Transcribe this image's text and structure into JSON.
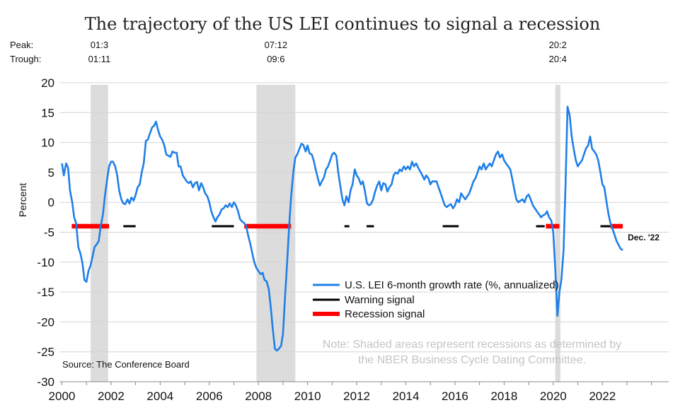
{
  "chart_data": {
    "type": "line",
    "title": "The trajectory of the US LEI continues to signal a recession",
    "ylabel": "Percent",
    "xlabel": "",
    "ylim": [
      -30,
      20
    ],
    "xlim": [
      1999.9,
      2024.7
    ],
    "y_ticks": [
      20,
      15,
      10,
      5,
      0,
      -5,
      -10,
      -15,
      -20,
      -25,
      -30
    ],
    "x_ticks": [
      2000,
      2002,
      2004,
      2006,
      2008,
      2010,
      2012,
      2014,
      2016,
      2018,
      2020,
      2022
    ],
    "grid": "horizontal",
    "peak_label": "Peak:",
    "trough_label": "Trough:",
    "recessions": [
      {
        "start": 2001.17,
        "end": 2001.88,
        "peak": "01:3",
        "trough": "01:11"
      },
      {
        "start": 2007.92,
        "end": 2009.5,
        "peak": "07:12",
        "trough": "09:6"
      },
      {
        "start": 2020.08,
        "end": 2020.29,
        "peak": "20:2",
        "trough": "20:4"
      }
    ],
    "series": [
      {
        "name": "U.S. LEI 6-month growth rate (%, annualized)",
        "color": "#1f7fe8",
        "points": [
          [
            2000.0,
            6.5
          ],
          [
            2000.08,
            4.5
          ],
          [
            2000.17,
            6.5
          ],
          [
            2000.25,
            5.8
          ],
          [
            2000.33,
            2.0
          ],
          [
            2000.42,
            0.0
          ],
          [
            2000.5,
            -2.5
          ],
          [
            2000.58,
            -3.5
          ],
          [
            2000.67,
            -7.5
          ],
          [
            2000.75,
            -8.5
          ],
          [
            2000.83,
            -10.0
          ],
          [
            2000.92,
            -13.0
          ],
          [
            2001.0,
            -13.3
          ],
          [
            2001.08,
            -11.5
          ],
          [
            2001.17,
            -10.5
          ],
          [
            2001.25,
            -9.0
          ],
          [
            2001.33,
            -7.5
          ],
          [
            2001.42,
            -7.0
          ],
          [
            2001.5,
            -6.5
          ],
          [
            2001.58,
            -4.0
          ],
          [
            2001.67,
            -2.0
          ],
          [
            2001.75,
            1.0
          ],
          [
            2001.83,
            3.5
          ],
          [
            2001.92,
            6.0
          ],
          [
            2002.0,
            6.8
          ],
          [
            2002.08,
            6.8
          ],
          [
            2002.17,
            6.0
          ],
          [
            2002.25,
            4.5
          ],
          [
            2002.33,
            2.0
          ],
          [
            2002.42,
            0.5
          ],
          [
            2002.5,
            -0.2
          ],
          [
            2002.58,
            -0.3
          ],
          [
            2002.67,
            0.5
          ],
          [
            2002.75,
            -0.2
          ],
          [
            2002.83,
            0.8
          ],
          [
            2002.92,
            0.3
          ],
          [
            2003.0,
            1.2
          ],
          [
            2003.08,
            2.5
          ],
          [
            2003.17,
            3.0
          ],
          [
            2003.25,
            5.0
          ],
          [
            2003.33,
            6.5
          ],
          [
            2003.42,
            10.3
          ],
          [
            2003.5,
            10.5
          ],
          [
            2003.58,
            11.5
          ],
          [
            2003.67,
            12.5
          ],
          [
            2003.75,
            12.8
          ],
          [
            2003.83,
            13.5
          ],
          [
            2003.92,
            12.0
          ],
          [
            2004.0,
            11.0
          ],
          [
            2004.08,
            10.5
          ],
          [
            2004.17,
            9.5
          ],
          [
            2004.25,
            8.0
          ],
          [
            2004.33,
            7.8
          ],
          [
            2004.42,
            7.6
          ],
          [
            2004.5,
            8.5
          ],
          [
            2004.58,
            8.3
          ],
          [
            2004.67,
            8.3
          ],
          [
            2004.75,
            6.0
          ],
          [
            2004.83,
            6.0
          ],
          [
            2004.92,
            4.5
          ],
          [
            2005.0,
            4.0
          ],
          [
            2005.08,
            3.5
          ],
          [
            2005.17,
            3.2
          ],
          [
            2005.25,
            3.5
          ],
          [
            2005.33,
            2.5
          ],
          [
            2005.42,
            3.2
          ],
          [
            2005.5,
            3.4
          ],
          [
            2005.58,
            2.0
          ],
          [
            2005.67,
            3.2
          ],
          [
            2005.75,
            2.5
          ],
          [
            2005.83,
            1.5
          ],
          [
            2005.92,
            1.0
          ],
          [
            2006.0,
            0.0
          ],
          [
            2006.08,
            -1.5
          ],
          [
            2006.17,
            -2.5
          ],
          [
            2006.25,
            -3.2
          ],
          [
            2006.33,
            -2.5
          ],
          [
            2006.42,
            -2.0
          ],
          [
            2006.5,
            -1.2
          ],
          [
            2006.58,
            -1.0
          ],
          [
            2006.67,
            -0.5
          ],
          [
            2006.75,
            -0.8
          ],
          [
            2006.83,
            -0.2
          ],
          [
            2006.92,
            -0.8
          ],
          [
            2007.0,
            0.0
          ],
          [
            2007.08,
            -0.5
          ],
          [
            2007.17,
            -1.5
          ],
          [
            2007.25,
            -2.8
          ],
          [
            2007.33,
            -3.2
          ],
          [
            2007.42,
            -3.5
          ],
          [
            2007.5,
            -4.0
          ],
          [
            2007.58,
            -5.5
          ],
          [
            2007.67,
            -7.0
          ],
          [
            2007.75,
            -8.5
          ],
          [
            2007.83,
            -10.0
          ],
          [
            2007.92,
            -11.0
          ],
          [
            2008.0,
            -11.5
          ],
          [
            2008.08,
            -12.0
          ],
          [
            2008.17,
            -11.8
          ],
          [
            2008.25,
            -13.0
          ],
          [
            2008.33,
            -13.2
          ],
          [
            2008.42,
            -14.5
          ],
          [
            2008.5,
            -17.5
          ],
          [
            2008.58,
            -21.0
          ],
          [
            2008.67,
            -24.5
          ],
          [
            2008.75,
            -24.8
          ],
          [
            2008.83,
            -24.5
          ],
          [
            2008.92,
            -24.0
          ],
          [
            2009.0,
            -22.0
          ],
          [
            2009.08,
            -16.0
          ],
          [
            2009.17,
            -10.0
          ],
          [
            2009.25,
            -4.0
          ],
          [
            2009.33,
            1.0
          ],
          [
            2009.42,
            5.0
          ],
          [
            2009.5,
            7.5
          ],
          [
            2009.58,
            8.0
          ],
          [
            2009.67,
            9.0
          ],
          [
            2009.75,
            9.8
          ],
          [
            2009.83,
            9.6
          ],
          [
            2009.92,
            8.5
          ],
          [
            2010.0,
            9.5
          ],
          [
            2010.08,
            8.2
          ],
          [
            2010.17,
            8.0
          ],
          [
            2010.25,
            7.0
          ],
          [
            2010.33,
            5.5
          ],
          [
            2010.42,
            4.0
          ],
          [
            2010.5,
            2.8
          ],
          [
            2010.58,
            3.5
          ],
          [
            2010.67,
            4.2
          ],
          [
            2010.75,
            5.5
          ],
          [
            2010.83,
            6.0
          ],
          [
            2010.92,
            7.0
          ],
          [
            2011.0,
            8.0
          ],
          [
            2011.08,
            8.3
          ],
          [
            2011.17,
            7.8
          ],
          [
            2011.25,
            5.0
          ],
          [
            2011.33,
            2.8
          ],
          [
            2011.42,
            0.5
          ],
          [
            2011.5,
            -0.5
          ],
          [
            2011.58,
            1.0
          ],
          [
            2011.67,
            0.0
          ],
          [
            2011.75,
            2.0
          ],
          [
            2011.83,
            3.0
          ],
          [
            2011.92,
            5.5
          ],
          [
            2012.0,
            4.5
          ],
          [
            2012.08,
            4.0
          ],
          [
            2012.17,
            3.0
          ],
          [
            2012.25,
            3.5
          ],
          [
            2012.33,
            2.0
          ],
          [
            2012.42,
            -0.2
          ],
          [
            2012.5,
            -0.5
          ],
          [
            2012.58,
            -0.3
          ],
          [
            2012.67,
            0.5
          ],
          [
            2012.75,
            1.8
          ],
          [
            2012.83,
            2.8
          ],
          [
            2012.92,
            3.5
          ],
          [
            2013.0,
            2.0
          ],
          [
            2013.08,
            3.2
          ],
          [
            2013.17,
            3.0
          ],
          [
            2013.25,
            1.8
          ],
          [
            2013.33,
            2.5
          ],
          [
            2013.42,
            3.0
          ],
          [
            2013.5,
            4.5
          ],
          [
            2013.58,
            5.0
          ],
          [
            2013.67,
            4.8
          ],
          [
            2013.75,
            5.5
          ],
          [
            2013.83,
            5.2
          ],
          [
            2013.92,
            6.0
          ],
          [
            2014.0,
            5.5
          ],
          [
            2014.08,
            6.0
          ],
          [
            2014.17,
            5.5
          ],
          [
            2014.25,
            6.8
          ],
          [
            2014.33,
            6.0
          ],
          [
            2014.42,
            6.5
          ],
          [
            2014.5,
            5.8
          ],
          [
            2014.58,
            5.2
          ],
          [
            2014.67,
            4.5
          ],
          [
            2014.75,
            3.8
          ],
          [
            2014.83,
            4.5
          ],
          [
            2014.92,
            4.0
          ],
          [
            2015.0,
            3.0
          ],
          [
            2015.08,
            3.5
          ],
          [
            2015.17,
            3.5
          ],
          [
            2015.25,
            3.5
          ],
          [
            2015.33,
            2.5
          ],
          [
            2015.42,
            1.5
          ],
          [
            2015.5,
            0.5
          ],
          [
            2015.58,
            -0.5
          ],
          [
            2015.67,
            -0.8
          ],
          [
            2015.75,
            -0.5
          ],
          [
            2015.83,
            -0.3
          ],
          [
            2015.92,
            -1.0
          ],
          [
            2016.0,
            -0.5
          ],
          [
            2016.08,
            0.5
          ],
          [
            2016.17,
            0.0
          ],
          [
            2016.25,
            1.5
          ],
          [
            2016.33,
            1.0
          ],
          [
            2016.42,
            0.5
          ],
          [
            2016.5,
            1.0
          ],
          [
            2016.58,
            1.5
          ],
          [
            2016.67,
            2.5
          ],
          [
            2016.75,
            3.5
          ],
          [
            2016.83,
            4.0
          ],
          [
            2016.92,
            5.0
          ],
          [
            2017.0,
            6.0
          ],
          [
            2017.08,
            5.5
          ],
          [
            2017.17,
            6.5
          ],
          [
            2017.25,
            5.5
          ],
          [
            2017.33,
            6.0
          ],
          [
            2017.42,
            6.5
          ],
          [
            2017.5,
            6.0
          ],
          [
            2017.58,
            7.0
          ],
          [
            2017.67,
            8.0
          ],
          [
            2017.75,
            8.5
          ],
          [
            2017.83,
            7.5
          ],
          [
            2017.92,
            8.0
          ],
          [
            2018.0,
            7.0
          ],
          [
            2018.08,
            6.5
          ],
          [
            2018.17,
            6.0
          ],
          [
            2018.25,
            5.5
          ],
          [
            2018.33,
            4.0
          ],
          [
            2018.42,
            2.0
          ],
          [
            2018.5,
            0.5
          ],
          [
            2018.58,
            0.0
          ],
          [
            2018.67,
            0.3
          ],
          [
            2018.75,
            0.5
          ],
          [
            2018.83,
            0.0
          ],
          [
            2018.92,
            1.0
          ],
          [
            2019.0,
            1.3
          ],
          [
            2019.08,
            0.5
          ],
          [
            2019.17,
            -0.5
          ],
          [
            2019.25,
            -1.0
          ],
          [
            2019.33,
            -1.5
          ],
          [
            2019.42,
            -2.0
          ],
          [
            2019.5,
            -2.5
          ],
          [
            2019.58,
            -2.2
          ],
          [
            2019.67,
            -2.0
          ],
          [
            2019.75,
            -1.5
          ],
          [
            2019.83,
            -2.5
          ],
          [
            2019.92,
            -3.0
          ],
          [
            2020.0,
            -5.0
          ],
          [
            2020.08,
            -11.0
          ],
          [
            2020.17,
            -19.0
          ],
          [
            2020.25,
            -15.0
          ],
          [
            2020.33,
            -13.0
          ],
          [
            2020.42,
            -8.0
          ],
          [
            2020.5,
            3.0
          ],
          [
            2020.58,
            16.0
          ],
          [
            2020.67,
            14.5
          ],
          [
            2020.75,
            11.0
          ],
          [
            2020.83,
            9.0
          ],
          [
            2020.92,
            7.0
          ],
          [
            2021.0,
            6.0
          ],
          [
            2021.08,
            6.5
          ],
          [
            2021.17,
            7.0
          ],
          [
            2021.25,
            8.0
          ],
          [
            2021.33,
            9.0
          ],
          [
            2021.42,
            9.5
          ],
          [
            2021.5,
            11.0
          ],
          [
            2021.58,
            9.0
          ],
          [
            2021.67,
            8.5
          ],
          [
            2021.75,
            8.0
          ],
          [
            2021.83,
            7.0
          ],
          [
            2021.92,
            5.0
          ],
          [
            2022.0,
            3.0
          ],
          [
            2022.08,
            2.5
          ],
          [
            2022.17,
            0.0
          ],
          [
            2022.25,
            -2.0
          ],
          [
            2022.33,
            -3.5
          ],
          [
            2022.42,
            -4.5
          ],
          [
            2022.5,
            -5.5
          ],
          [
            2022.58,
            -6.5
          ],
          [
            2022.67,
            -7.2
          ],
          [
            2022.75,
            -7.8
          ],
          [
            2022.83,
            -8.0
          ]
        ]
      },
      {
        "name": "Warning signal",
        "color": "#000000",
        "segments": [
          [
            2002.5,
            2003.0
          ],
          [
            2006.1,
            2007.0
          ],
          [
            2011.5,
            2011.7
          ],
          [
            2012.4,
            2012.7
          ],
          [
            2015.5,
            2016.15
          ],
          [
            2019.3,
            2019.65
          ],
          [
            2021.92,
            2022.33
          ]
        ]
      },
      {
        "name": "Recession signal",
        "color": "#ff0000",
        "segments": [
          [
            2000.4,
            2001.92
          ],
          [
            2007.42,
            2009.33
          ],
          [
            2019.7,
            2020.25
          ],
          [
            2022.33,
            2022.83
          ]
        ]
      }
    ],
    "signal_level": -4,
    "end_label": "Dec. '22",
    "note_line1": "Note: Shaded areas represent recessions as determined by",
    "note_line2": "the NBER Business Cycle Dating Committee.",
    "source": "Source: The Conference Board"
  }
}
